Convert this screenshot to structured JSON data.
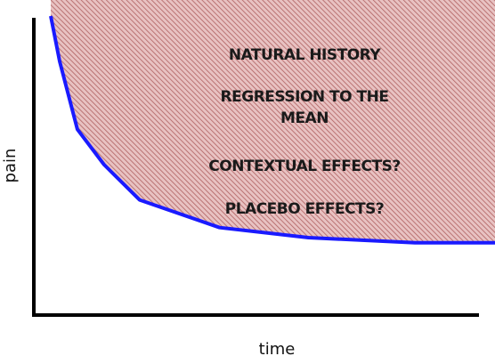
{
  "chart_data": {
    "type": "area",
    "title": "",
    "xlabel": "time",
    "ylabel": "pain",
    "grid": false,
    "series": [
      {
        "x": [
          0.0,
          0.02,
          0.06,
          0.12,
          0.2,
          0.38,
          0.58,
          0.82,
          1.0
        ],
        "y": [
          1.0,
          0.82,
          0.55,
          0.41,
          0.27,
          0.16,
          0.12,
          0.1,
          0.1
        ]
      }
    ],
    "annotations": [
      "NATURAL HISTORY",
      "REGRESSION TO THE",
      "MEAN",
      "CONTEXTUAL EFFECTS?",
      "PLACEBO EFFECTS?"
    ],
    "colors": {
      "curve": "#1a1aff",
      "fill": "#e8c2c2",
      "hatch": "#b06060",
      "axis": "#000000"
    }
  }
}
